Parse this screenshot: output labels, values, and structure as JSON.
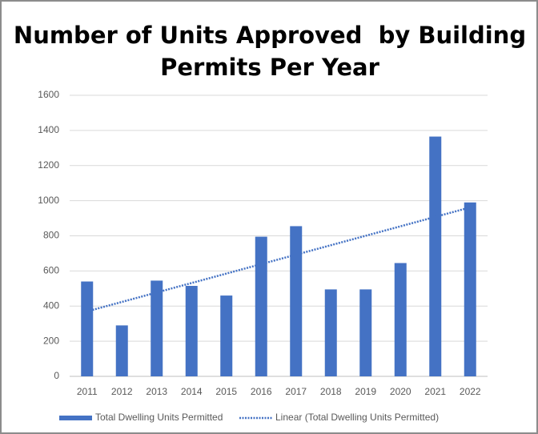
{
  "chart_data": {
    "type": "bar",
    "title": "Number of Units Approved  by Building Permits Per Year",
    "categories": [
      "2011",
      "2012",
      "2013",
      "2014",
      "2015",
      "2016",
      "2017",
      "2018",
      "2019",
      "2020",
      "2021",
      "2022"
    ],
    "series": [
      {
        "name": "Total Dwelling Units Permitted",
        "color": "#4472c4",
        "values": [
          540,
          290,
          545,
          515,
          460,
          795,
          855,
          495,
          495,
          645,
          1365,
          990
        ]
      }
    ],
    "trendline": {
      "name": "Linear (Total Dwelling Units Permitted)",
      "color": "#4472c4",
      "type": "linear",
      "dotted": true
    },
    "ylim": [
      0,
      1600
    ],
    "yticks": [
      0,
      200,
      400,
      600,
      800,
      1000,
      1200,
      1400,
      1600
    ],
    "grid": true,
    "legend": "bottom"
  }
}
